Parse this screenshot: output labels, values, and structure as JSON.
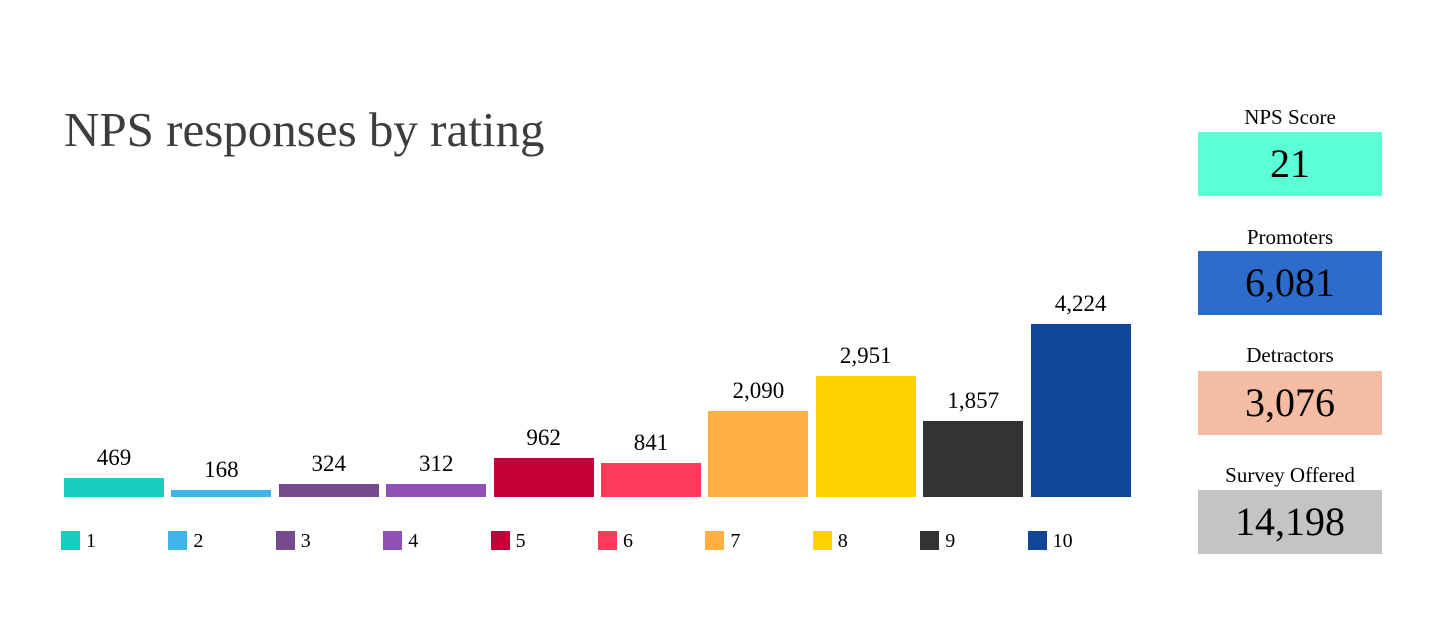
{
  "chart_data": {
    "type": "bar",
    "title": "NPS responses by rating",
    "categories": [
      "1",
      "2",
      "3",
      "4",
      "5",
      "6",
      "7",
      "8",
      "9",
      "10"
    ],
    "values": [
      469,
      168,
      324,
      312,
      962,
      841,
      2090,
      2951,
      1857,
      4224
    ],
    "data_labels": [
      "469",
      "168",
      "324",
      "312",
      "962",
      "841",
      "2,090",
      "2,951",
      "1,857",
      "4,224"
    ],
    "colors": [
      "#19cdbf",
      "#3fb5ea",
      "#764b8e",
      "#9152b8",
      "#c50038",
      "#ff3b5c",
      "#ffb040",
      "#ffd200",
      "#333333",
      "#10459a"
    ],
    "legend_position": "bottom",
    "grid": false,
    "axes_visible": false
  },
  "kpis": [
    {
      "label": "NPS Score",
      "value": "21",
      "color": "#5cffd5"
    },
    {
      "label": "Promoters",
      "value": "6,081",
      "color": "#2d6ccb"
    },
    {
      "label": "Detractors",
      "value": "3,076",
      "color": "#f4bca2"
    },
    {
      "label": "Survey Offered",
      "value": "14,198",
      "color": "#c4c4c4"
    }
  ]
}
